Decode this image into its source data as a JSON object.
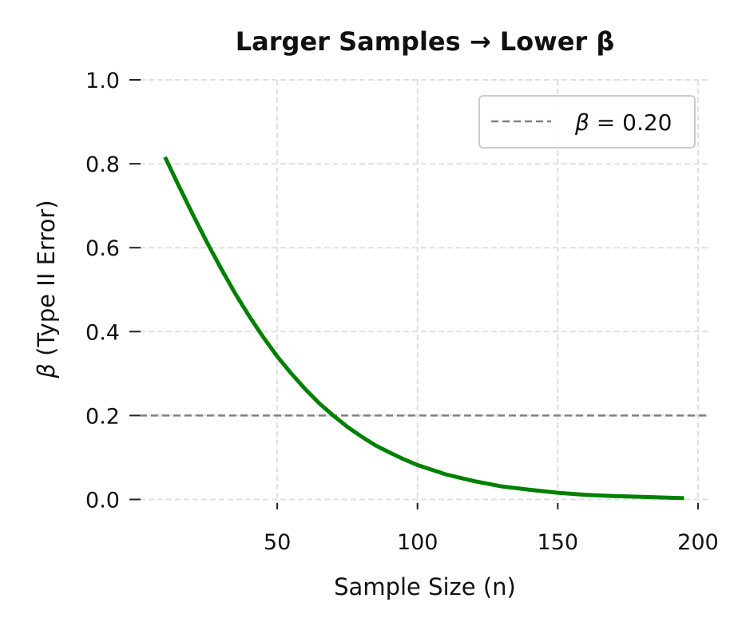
{
  "chart_data": {
    "type": "line",
    "title": "Larger Samples → Lower β",
    "xlabel": "Sample Size (n)",
    "ylabel_symbol": "β",
    "ylabel_rest": " (Type II Error)",
    "xlim": [
      1,
      204
    ],
    "ylim": [
      -0.02,
      1.0
    ],
    "xticks": [
      50,
      100,
      150,
      200
    ],
    "yticks": [
      0.0,
      0.2,
      0.4,
      0.6,
      0.8,
      1.0
    ],
    "xtick_labels": [
      "50",
      "100",
      "150",
      "200"
    ],
    "ytick_labels": [
      "0.0",
      "0.2",
      "0.4",
      "0.6",
      "0.8",
      "1.0"
    ],
    "grid": true,
    "legend_position": "top-right",
    "series": [
      {
        "color": "#008000",
        "x": [
          10,
          15,
          20,
          25,
          30,
          35,
          40,
          45,
          50,
          55,
          60,
          65,
          70,
          75,
          80,
          85,
          90,
          95,
          100,
          110,
          120,
          130,
          140,
          150,
          160,
          170,
          180,
          195
        ],
        "y": [
          0.816,
          0.746,
          0.678,
          0.612,
          0.55,
          0.491,
          0.437,
          0.387,
          0.341,
          0.3,
          0.263,
          0.229,
          0.2,
          0.173,
          0.15,
          0.129,
          0.112,
          0.096,
          0.082,
          0.06,
          0.044,
          0.031,
          0.023,
          0.016,
          0.011,
          0.008,
          0.006,
          0.003
        ]
      }
    ],
    "reference_line": {
      "y": 0.2,
      "color": "#808080",
      "style": "dashed",
      "label_symbol": "β",
      "label_rest": " = 0.20"
    }
  }
}
